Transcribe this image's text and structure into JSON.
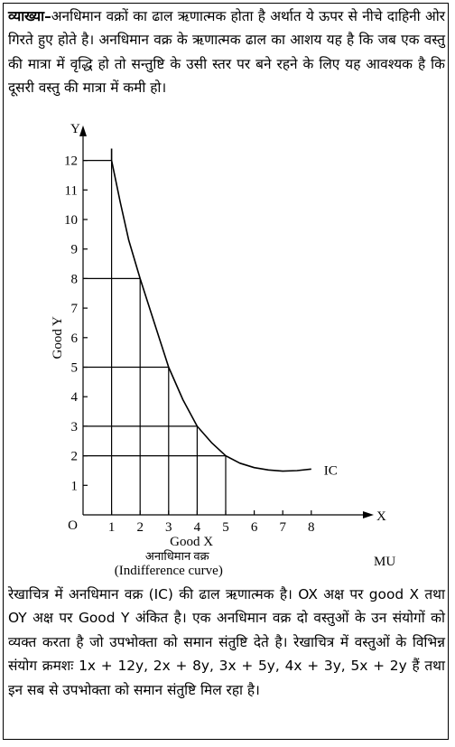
{
  "explanation": {
    "lead": "व्याख्या–",
    "text": "अनधिमान वक्रों का ढाल ऋणात्मक होता है अर्थात ये ऊपर से नीचे दाहिनी ओर गिरते हुए होते है। अनधिमान वक्र के ऋणात्मक ढाल का आशय यह है कि जब एक वस्तु की मात्रा में वृद्धि हो तो सन्तुष्टि के उसी स्तर पर बने रहने के लिए यह आवश्यक है कि दूसरी वस्तु की मात्रा में कमी हो।"
  },
  "chart_data": {
    "type": "line",
    "title": "अनाधिमान वक्र",
    "subtitle": "(Indifference curve)",
    "xlabel": "Good X",
    "ylabel": "Good Y",
    "x_axis_letter": "X",
    "y_axis_letter": "Y",
    "origin_label": "O",
    "x_ticks": [
      1,
      2,
      3,
      4,
      5,
      6,
      7,
      8
    ],
    "y_ticks": [
      1,
      2,
      3,
      4,
      5,
      6,
      7,
      8,
      9,
      10,
      11,
      12
    ],
    "xlim": [
      0,
      10
    ],
    "ylim": [
      0,
      13
    ],
    "series": [
      {
        "name": "IC",
        "x": [
          1,
          1.3,
          1.6,
          2,
          2.4,
          2.7,
          3,
          3.5,
          4,
          4.5,
          5,
          5.5,
          6,
          6.5,
          7,
          7.5,
          8
        ],
        "y": [
          12,
          10.6,
          9.3,
          8,
          6.8,
          5.9,
          5,
          3.9,
          3,
          2.45,
          2,
          1.75,
          1.6,
          1.52,
          1.48,
          1.5,
          1.55
        ]
      }
    ],
    "combinations": [
      {
        "x": 1,
        "y": 12
      },
      {
        "x": 2,
        "y": 8
      },
      {
        "x": 3,
        "y": 5
      },
      {
        "x": 4,
        "y": 3
      },
      {
        "x": 5,
        "y": 2
      }
    ],
    "corner_label": "MU"
  },
  "description": {
    "text": "रेखाचित्र में अनधिमान वक्र (IC) की ढाल ऋणात्मक है। OX अक्ष पर good X तथा OY अक्ष पर Good Y अंकित है। एक अनधिमान वक्र दो वस्तुओं के उन संयोगों को व्यक्त करता है जो उपभोक्ता को समान संतुष्टि देते है। रेखाचित्र में वस्तुओं के विभिन्न संयोग क्रमशः 1x + 12y, 2x + 8y, 3x + 5y, 4x + 3y, 5x + 2y हैं तथा इन सब से उपभोक्ता को समान संतुष्टि मिल रहा है।"
  }
}
